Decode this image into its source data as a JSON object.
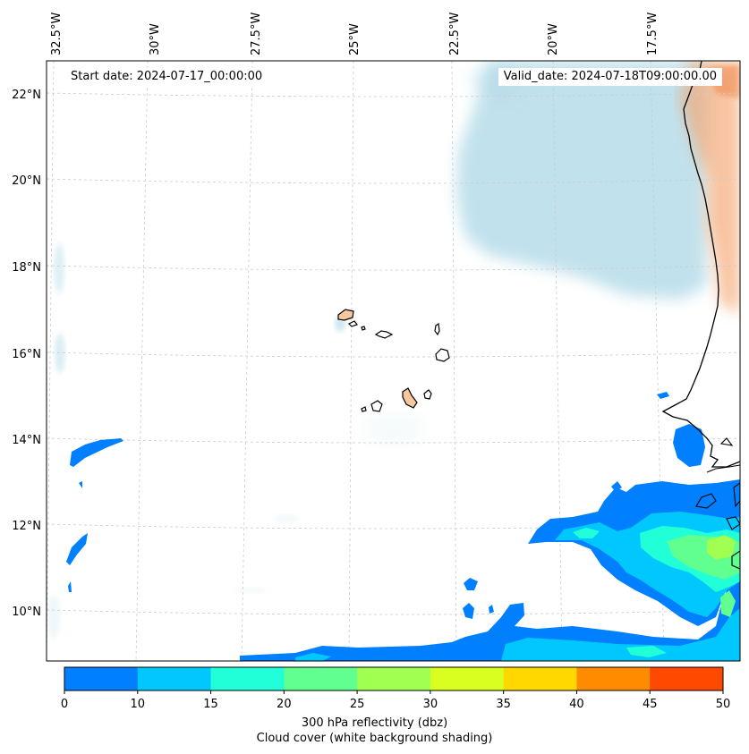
{
  "map": {
    "start_date": "Start date: 2024-07-17_00:00:00",
    "valid_date": "Valid_date: 2024-07-18T09:00:00.00",
    "lon_labels": [
      "32.5°W",
      "30°W",
      "27.5°W",
      "25°W",
      "22.5°W",
      "20°W",
      "17.5°W"
    ],
    "lat_labels": [
      "22°N",
      "20°N",
      "18°N",
      "16°N",
      "14°N",
      "12°N",
      "10°N"
    ]
  },
  "colorbar": {
    "ticks": [
      "0",
      "10",
      "15",
      "20",
      "25",
      "30",
      "35",
      "40",
      "45",
      "50"
    ],
    "colors": [
      "#0080ff",
      "#00c8ff",
      "#20ffd8",
      "#60ff90",
      "#a0ff50",
      "#d8ff20",
      "#ffd800",
      "#ff8c00",
      "#ff4800"
    ],
    "label_line1": "300 hPa reflectivity (dbz)",
    "label_line2": "Cloud cover (white background shading)"
  },
  "colors": {
    "cloud_blue": "#add8e6",
    "land_orange": "#f4a46e",
    "coast": "#000000",
    "grid": "#cccccc"
  }
}
